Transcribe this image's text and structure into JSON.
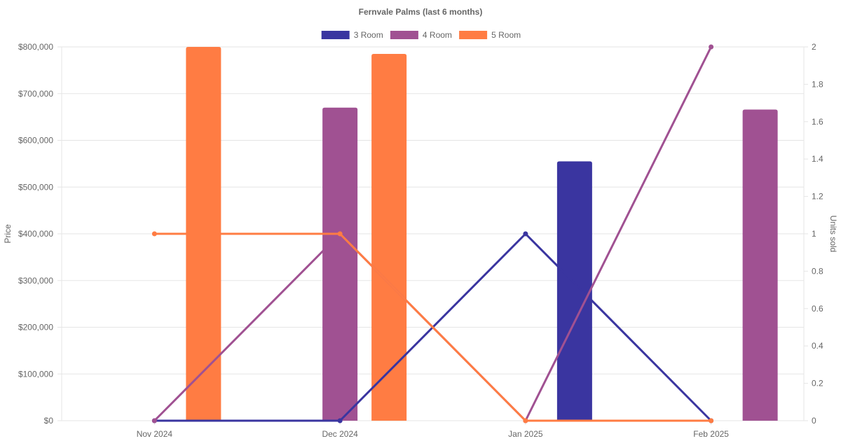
{
  "chart_data": {
    "type": "bar",
    "title": "Fernvale Palms (last 6 months)",
    "categories": [
      "Nov 2024",
      "Dec 2024",
      "Jan 2025",
      "Feb 2025"
    ],
    "ylabel": "Price",
    "y2label": "Units sold",
    "ylim": [
      0,
      800000
    ],
    "y2lim": [
      0,
      2
    ],
    "yticks": [
      "$0",
      "$100,000",
      "$200,000",
      "$300,000",
      "$400,000",
      "$500,000",
      "$600,000",
      "$700,000",
      "$800,000"
    ],
    "y2ticks": [
      "0",
      "0.2",
      "0.4",
      "0.6",
      "0.8",
      "1",
      "1.2",
      "1.4",
      "1.6",
      "1.8",
      "2"
    ],
    "grid": true,
    "legend_position": "top",
    "series": [
      {
        "name": "3 Room",
        "color": "#3a35a0",
        "price": [
          null,
          null,
          555000,
          null
        ],
        "units": [
          0,
          0,
          1,
          0
        ]
      },
      {
        "name": "4 Room",
        "color": "#a05192",
        "price": [
          null,
          670000,
          null,
          666000
        ],
        "units": [
          0,
          1,
          0,
          2
        ]
      },
      {
        "name": "5 Room",
        "color": "#ff7c43",
        "price": [
          800000,
          785000,
          null,
          null
        ],
        "units": [
          1,
          1,
          0,
          0
        ]
      }
    ]
  }
}
